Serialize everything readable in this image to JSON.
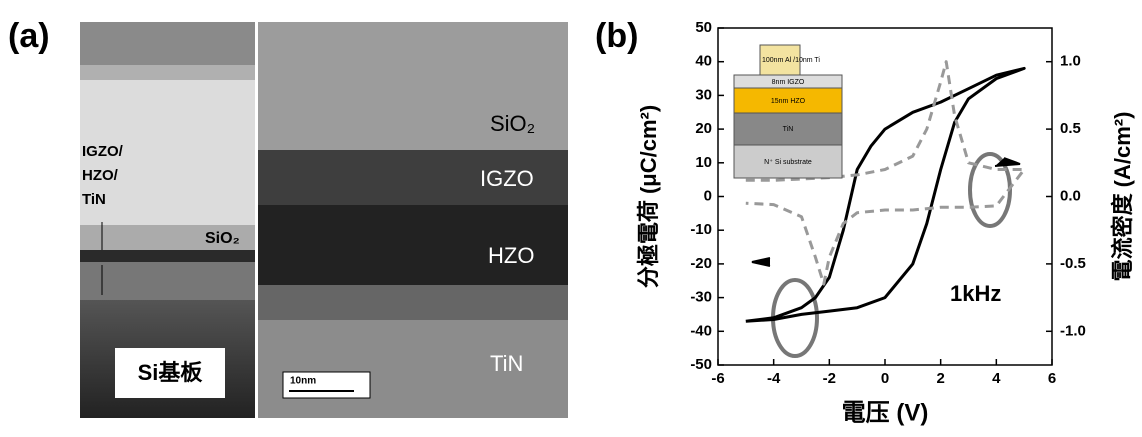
{
  "panel_a": {
    "label": "(a)",
    "stack_label": [
      "IGZO/",
      "HZO/",
      "TiN"
    ],
    "left_sio2": "SiO₂",
    "substrate": "Si基板",
    "right_layers": [
      "SiO₂",
      "IGZO",
      "HZO",
      "TiN"
    ],
    "scale_bar": "10nm"
  },
  "panel_b_label": "(b)",
  "inset_layers": [
    "100nm Al /10nm Ti",
    "8nm IGZO",
    "15nm HZO",
    "TiN",
    "N⁺ Si substrate"
  ],
  "chart_data": {
    "type": "line",
    "xlabel": "電压 (V)",
    "ylabel": "分極電荷 (μC/cm²)",
    "y2label": "電流密度 (A/cm²)",
    "annotation": "1kHz",
    "xlim": [
      -6,
      6
    ],
    "xticks": [
      -6,
      -4,
      -2,
      0,
      2,
      4,
      6
    ],
    "ylim": [
      -50,
      50
    ],
    "yticks": [
      -50,
      -40,
      -30,
      -20,
      -10,
      0,
      10,
      20,
      30,
      40,
      50
    ],
    "y2lim": [
      -1.25,
      1.25
    ],
    "y2ticks": [
      {
        "value": -1,
        "label": "-1.0"
      },
      -0.5,
      {
        "value": 0,
        "label": "0.0"
      },
      0.5,
      {
        "value": 1,
        "label": "1.0"
      }
    ],
    "series": [
      {
        "color": "#000000",
        "line_style": "solid",
        "x": [
          -5,
          -4,
          -3,
          -2.5,
          -2,
          -1.5,
          -1,
          -0.5,
          0,
          1,
          2,
          3,
          4,
          5,
          4,
          3,
          2.5,
          2,
          1.5,
          1,
          0,
          -1,
          -2,
          -3,
          -4,
          -5
        ],
        "values": [
          -37,
          -36,
          -33,
          -30,
          -24,
          -10,
          8,
          15,
          20,
          25,
          28,
          32,
          36,
          38,
          35,
          29,
          22,
          8,
          -8,
          -20,
          -30,
          -33,
          -34,
          -35,
          -36.5,
          -37
        ]
      },
      {
        "color": "#999999",
        "line_style": "dashed",
        "axis": "y2",
        "x": [
          -5,
          -4,
          -3,
          -2,
          -1,
          0,
          1,
          1.5,
          2,
          2.2,
          2.5,
          3,
          4,
          5,
          4,
          3,
          2,
          1,
          0,
          -1,
          -1.5,
          -2,
          -2.2,
          -2.5,
          -3,
          -4,
          -5
        ],
        "values": [
          0.12,
          0.12,
          0.13,
          0.14,
          0.16,
          0.2,
          0.3,
          0.5,
          0.85,
          1.0,
          0.6,
          0.25,
          0.2,
          0.2,
          -0.07,
          -0.08,
          -0.08,
          -0.1,
          -0.1,
          -0.12,
          -0.2,
          -0.45,
          -0.65,
          -0.45,
          -0.15,
          -0.06,
          -0.05
        ]
      }
    ]
  }
}
